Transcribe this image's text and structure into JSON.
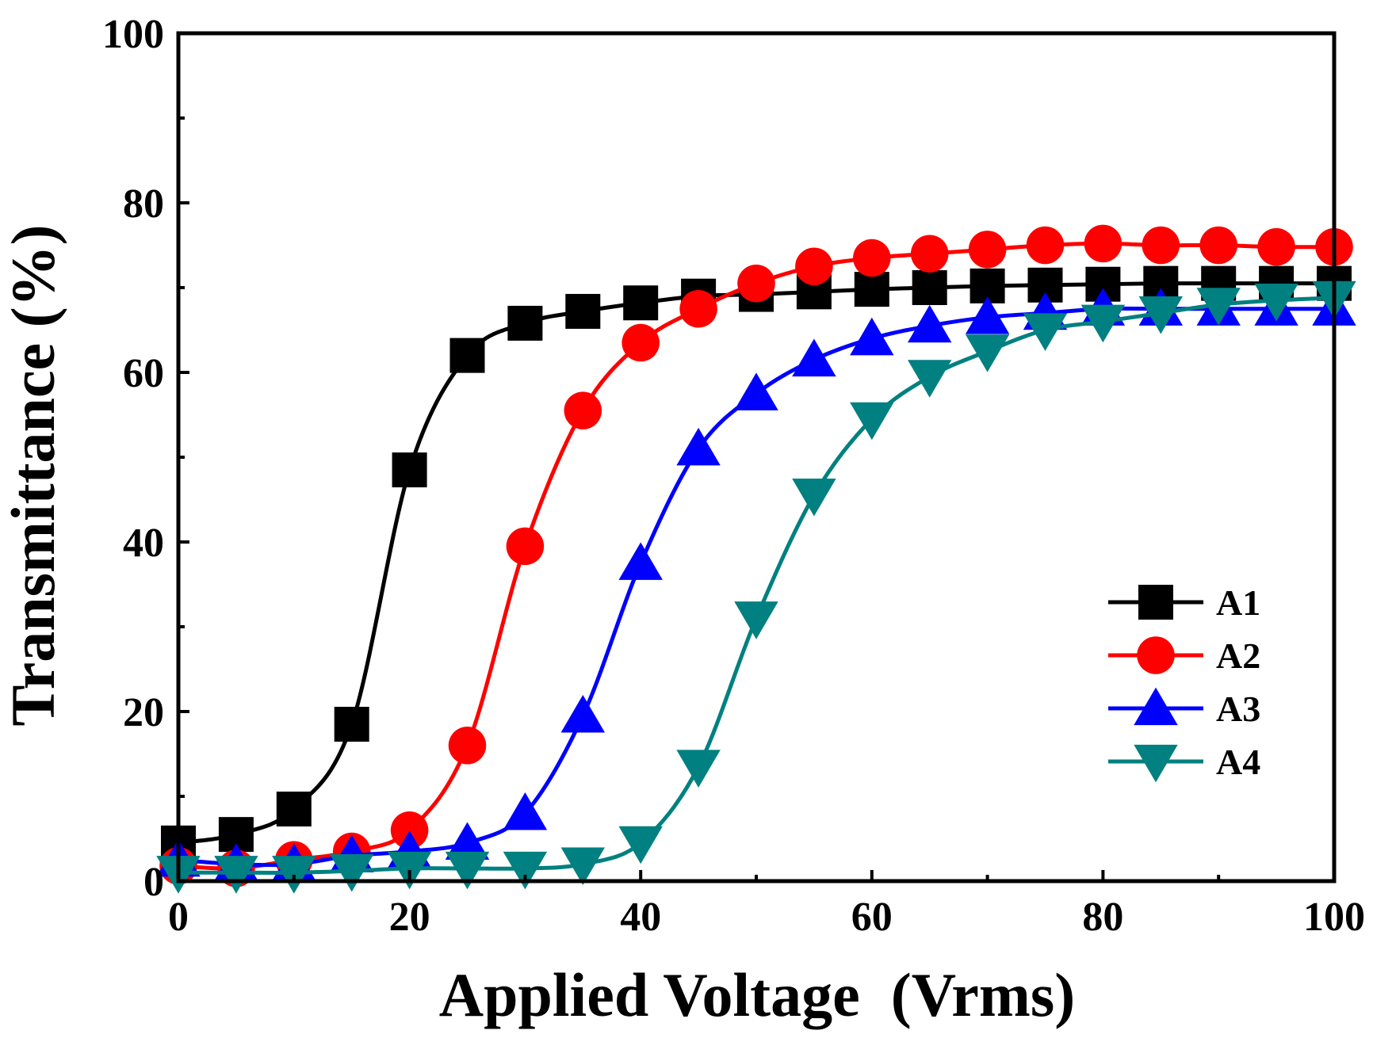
{
  "chart_data": {
    "type": "line",
    "title": "",
    "xlabel": "Applied Voltage  (Vrms)",
    "ylabel": "Transmittance (%)",
    "xlim": [
      0,
      100
    ],
    "ylim": [
      0,
      100
    ],
    "x_ticks": [
      0,
      20,
      40,
      60,
      80,
      100
    ],
    "y_ticks": [
      0,
      20,
      40,
      60,
      80,
      100
    ],
    "x_tick_labels": [
      "0",
      "20",
      "40",
      "60",
      "80",
      "100"
    ],
    "y_tick_labels": [
      "0",
      "20",
      "40",
      "60",
      "80",
      "100"
    ],
    "legend_position": "lower-right",
    "x": [
      0,
      5,
      10,
      15,
      20,
      25,
      30,
      35,
      40,
      45,
      50,
      55,
      60,
      65,
      70,
      75,
      80,
      85,
      90,
      95,
      100
    ],
    "series": [
      {
        "name": "A1",
        "color": "#000000",
        "marker": "square",
        "values": [
          4.5,
          5.5,
          8.5,
          18.5,
          48.5,
          62,
          65.8,
          67.2,
          68.2,
          69,
          69.2,
          69.5,
          69.8,
          70,
          70.2,
          70.3,
          70.4,
          70.5,
          70.5,
          70.5,
          70.5
        ]
      },
      {
        "name": "A2",
        "color": "#ff0000",
        "marker": "circle",
        "values": [
          1.8,
          1.5,
          2.5,
          3.5,
          6,
          16,
          39.5,
          55.5,
          63.5,
          67.5,
          70.5,
          72.5,
          73.5,
          74,
          74.5,
          75,
          75.2,
          75,
          75,
          74.8,
          74.8
        ]
      },
      {
        "name": "A3",
        "color": "#0000ff",
        "marker": "triangle-up",
        "values": [
          2.5,
          2,
          2,
          3,
          3.5,
          4.5,
          8,
          19.5,
          37.5,
          51,
          57.5,
          61.5,
          64,
          65.5,
          66.5,
          67,
          67.5,
          67.5,
          67.5,
          67.5,
          67.5
        ]
      },
      {
        "name": "A4",
        "color": "#008080",
        "marker": "triangle-down",
        "values": [
          1,
          1,
          1,
          1.2,
          1.5,
          1.5,
          1.5,
          2,
          4.5,
          13.5,
          31,
          45.5,
          54.5,
          59.5,
          62.5,
          65,
          66,
          67,
          68,
          68.5,
          68.8
        ]
      }
    ]
  }
}
